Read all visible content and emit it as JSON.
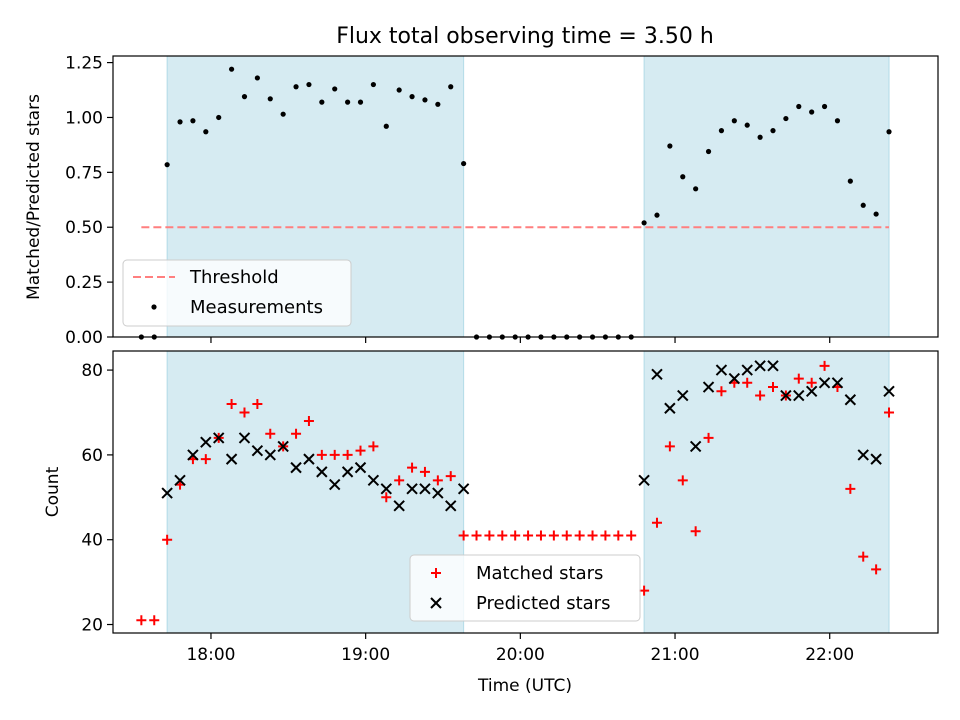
{
  "chart_data": [
    {
      "type": "scatter",
      "title": "Flux total observing time = 3.50 h",
      "xlabel": "",
      "ylabel": "Matched/Predicted stars",
      "xlim": [
        "17:22",
        "22:42"
      ],
      "ylim": [
        0,
        1.28
      ],
      "yticks": [
        0,
        0.25,
        0.5,
        0.75,
        1.0,
        1.25
      ],
      "yticklabels": [
        "0.00",
        "0.25",
        "0.50",
        "0.75",
        "1.00",
        "1.25"
      ],
      "xticks": [
        "18:00",
        "19:00",
        "20:00",
        "21:00",
        "22:00"
      ],
      "shaded_intervals": [
        [
          "17:43",
          "19:38"
        ],
        [
          "20:48",
          "22:23"
        ]
      ],
      "legend_position": "lower left",
      "threshold": {
        "name": "Threshold",
        "value": 0.5,
        "x_range": [
          "17:33",
          "22:23"
        ],
        "color": "#ff7f7f",
        "style": "dashed"
      },
      "series": [
        {
          "name": "Measurements",
          "color": "#000000",
          "marker": "dot",
          "points": [
            [
              "17:33",
              0
            ],
            [
              "17:38",
              0
            ],
            [
              "17:43",
              0.785
            ],
            [
              "17:48",
              0.98
            ],
            [
              "17:53",
              0.985
            ],
            [
              "17:58",
              0.935
            ],
            [
              "18:03",
              1.0
            ],
            [
              "18:08",
              1.22
            ],
            [
              "18:13",
              1.095
            ],
            [
              "18:18",
              1.18
            ],
            [
              "18:23",
              1.085
            ],
            [
              "18:28",
              1.015
            ],
            [
              "18:33",
              1.14
            ],
            [
              "18:38",
              1.15
            ],
            [
              "18:43",
              1.07
            ],
            [
              "18:48",
              1.13
            ],
            [
              "18:53",
              1.07
            ],
            [
              "18:58",
              1.07
            ],
            [
              "19:03",
              1.15
            ],
            [
              "19:08",
              0.96
            ],
            [
              "19:13",
              1.125
            ],
            [
              "19:18",
              1.095
            ],
            [
              "19:23",
              1.08
            ],
            [
              "19:28",
              1.06
            ],
            [
              "19:33",
              1.14
            ],
            [
              "19:38",
              0.79
            ],
            [
              "19:43",
              0
            ],
            [
              "19:48",
              0
            ],
            [
              "19:53",
              0
            ],
            [
              "19:58",
              0
            ],
            [
              "20:03",
              0
            ],
            [
              "20:08",
              0
            ],
            [
              "20:13",
              0
            ],
            [
              "20:18",
              0
            ],
            [
              "20:23",
              0
            ],
            [
              "20:28",
              0
            ],
            [
              "20:33",
              0
            ],
            [
              "20:38",
              0
            ],
            [
              "20:43",
              0
            ],
            [
              "20:48",
              0.52
            ],
            [
              "20:53",
              0.555
            ],
            [
              "20:58",
              0.87
            ],
            [
              "21:03",
              0.73
            ],
            [
              "21:08",
              0.675
            ],
            [
              "21:13",
              0.845
            ],
            [
              "21:18",
              0.94
            ],
            [
              "21:23",
              0.985
            ],
            [
              "21:28",
              0.965
            ],
            [
              "21:33",
              0.91
            ],
            [
              "21:38",
              0.94
            ],
            [
              "21:43",
              0.995
            ],
            [
              "21:48",
              1.05
            ],
            [
              "21:53",
              1.025
            ],
            [
              "21:58",
              1.05
            ],
            [
              "22:03",
              0.985
            ],
            [
              "22:08",
              0.71
            ],
            [
              "22:13",
              0.6
            ],
            [
              "22:18",
              0.56
            ],
            [
              "22:23",
              0.935
            ]
          ]
        }
      ]
    },
    {
      "type": "scatter",
      "title": "",
      "xlabel": "Time (UTC)",
      "ylabel": "Count",
      "xlim": [
        "17:22",
        "22:42"
      ],
      "ylim": [
        18,
        84.5
      ],
      "yticks": [
        20,
        40,
        60,
        80
      ],
      "yticklabels": [
        "20",
        "40",
        "60",
        "80"
      ],
      "xticks": [
        "18:00",
        "19:00",
        "20:00",
        "21:00",
        "22:00"
      ],
      "xticklabels": [
        "18:00",
        "19:00",
        "20:00",
        "21:00",
        "22:00"
      ],
      "shaded_intervals": [
        [
          "17:43",
          "19:38"
        ],
        [
          "20:48",
          "22:23"
        ]
      ],
      "legend_position": "lower center",
      "series": [
        {
          "name": "Matched stars",
          "color": "#ff0000",
          "marker": "plus",
          "points": [
            [
              "17:33",
              21
            ],
            [
              "17:38",
              21
            ],
            [
              "17:43",
              40
            ],
            [
              "17:48",
              53
            ],
            [
              "17:53",
              59
            ],
            [
              "17:58",
              59
            ],
            [
              "18:03",
              64
            ],
            [
              "18:08",
              72
            ],
            [
              "18:13",
              70
            ],
            [
              "18:18",
              72
            ],
            [
              "18:23",
              65
            ],
            [
              "18:28",
              62
            ],
            [
              "18:33",
              65
            ],
            [
              "18:38",
              68
            ],
            [
              "18:43",
              60
            ],
            [
              "18:48",
              60
            ],
            [
              "18:53",
              60
            ],
            [
              "18:58",
              61
            ],
            [
              "19:03",
              62
            ],
            [
              "19:08",
              50
            ],
            [
              "19:13",
              54
            ],
            [
              "19:18",
              57
            ],
            [
              "19:23",
              56
            ],
            [
              "19:28",
              54
            ],
            [
              "19:33",
              55
            ],
            [
              "19:38",
              41
            ],
            [
              "19:43",
              41
            ],
            [
              "19:48",
              41
            ],
            [
              "19:53",
              41
            ],
            [
              "19:58",
              41
            ],
            [
              "20:03",
              41
            ],
            [
              "20:08",
              41
            ],
            [
              "20:13",
              41
            ],
            [
              "20:18",
              41
            ],
            [
              "20:23",
              41
            ],
            [
              "20:28",
              41
            ],
            [
              "20:33",
              41
            ],
            [
              "20:38",
              41
            ],
            [
              "20:43",
              41
            ],
            [
              "20:48",
              28
            ],
            [
              "20:53",
              44
            ],
            [
              "20:58",
              62
            ],
            [
              "21:03",
              54
            ],
            [
              "21:08",
              42
            ],
            [
              "21:13",
              64
            ],
            [
              "21:18",
              75
            ],
            [
              "21:23",
              77
            ],
            [
              "21:28",
              77
            ],
            [
              "21:33",
              74
            ],
            [
              "21:38",
              76
            ],
            [
              "21:43",
              74
            ],
            [
              "21:48",
              78
            ],
            [
              "21:53",
              77
            ],
            [
              "21:58",
              81
            ],
            [
              "22:03",
              76
            ],
            [
              "22:08",
              52
            ],
            [
              "22:13",
              36
            ],
            [
              "22:18",
              33
            ],
            [
              "22:23",
              70
            ]
          ]
        },
        {
          "name": "Predicted stars",
          "color": "#000000",
          "marker": "x",
          "points": [
            [
              "17:43",
              51
            ],
            [
              "17:48",
              54
            ],
            [
              "17:53",
              60
            ],
            [
              "17:58",
              63
            ],
            [
              "18:03",
              64
            ],
            [
              "18:08",
              59
            ],
            [
              "18:13",
              64
            ],
            [
              "18:18",
              61
            ],
            [
              "18:23",
              60
            ],
            [
              "18:28",
              62
            ],
            [
              "18:33",
              57
            ],
            [
              "18:38",
              59
            ],
            [
              "18:43",
              56
            ],
            [
              "18:48",
              53
            ],
            [
              "18:53",
              56
            ],
            [
              "18:58",
              57
            ],
            [
              "19:03",
              54
            ],
            [
              "19:08",
              52
            ],
            [
              "19:13",
              48
            ],
            [
              "19:18",
              52
            ],
            [
              "19:23",
              52
            ],
            [
              "19:28",
              51
            ],
            [
              "19:33",
              48
            ],
            [
              "19:38",
              52
            ],
            [
              "20:48",
              54
            ],
            [
              "20:53",
              79
            ],
            [
              "20:58",
              71
            ],
            [
              "21:03",
              74
            ],
            [
              "21:08",
              62
            ],
            [
              "21:13",
              76
            ],
            [
              "21:18",
              80
            ],
            [
              "21:23",
              78
            ],
            [
              "21:28",
              80
            ],
            [
              "21:33",
              81
            ],
            [
              "21:38",
              81
            ],
            [
              "21:43",
              74
            ],
            [
              "21:48",
              74
            ],
            [
              "21:53",
              75
            ],
            [
              "21:58",
              77
            ],
            [
              "22:03",
              77
            ],
            [
              "22:08",
              73
            ],
            [
              "22:13",
              60
            ],
            [
              "22:18",
              59
            ],
            [
              "22:23",
              75
            ]
          ]
        }
      ]
    }
  ]
}
